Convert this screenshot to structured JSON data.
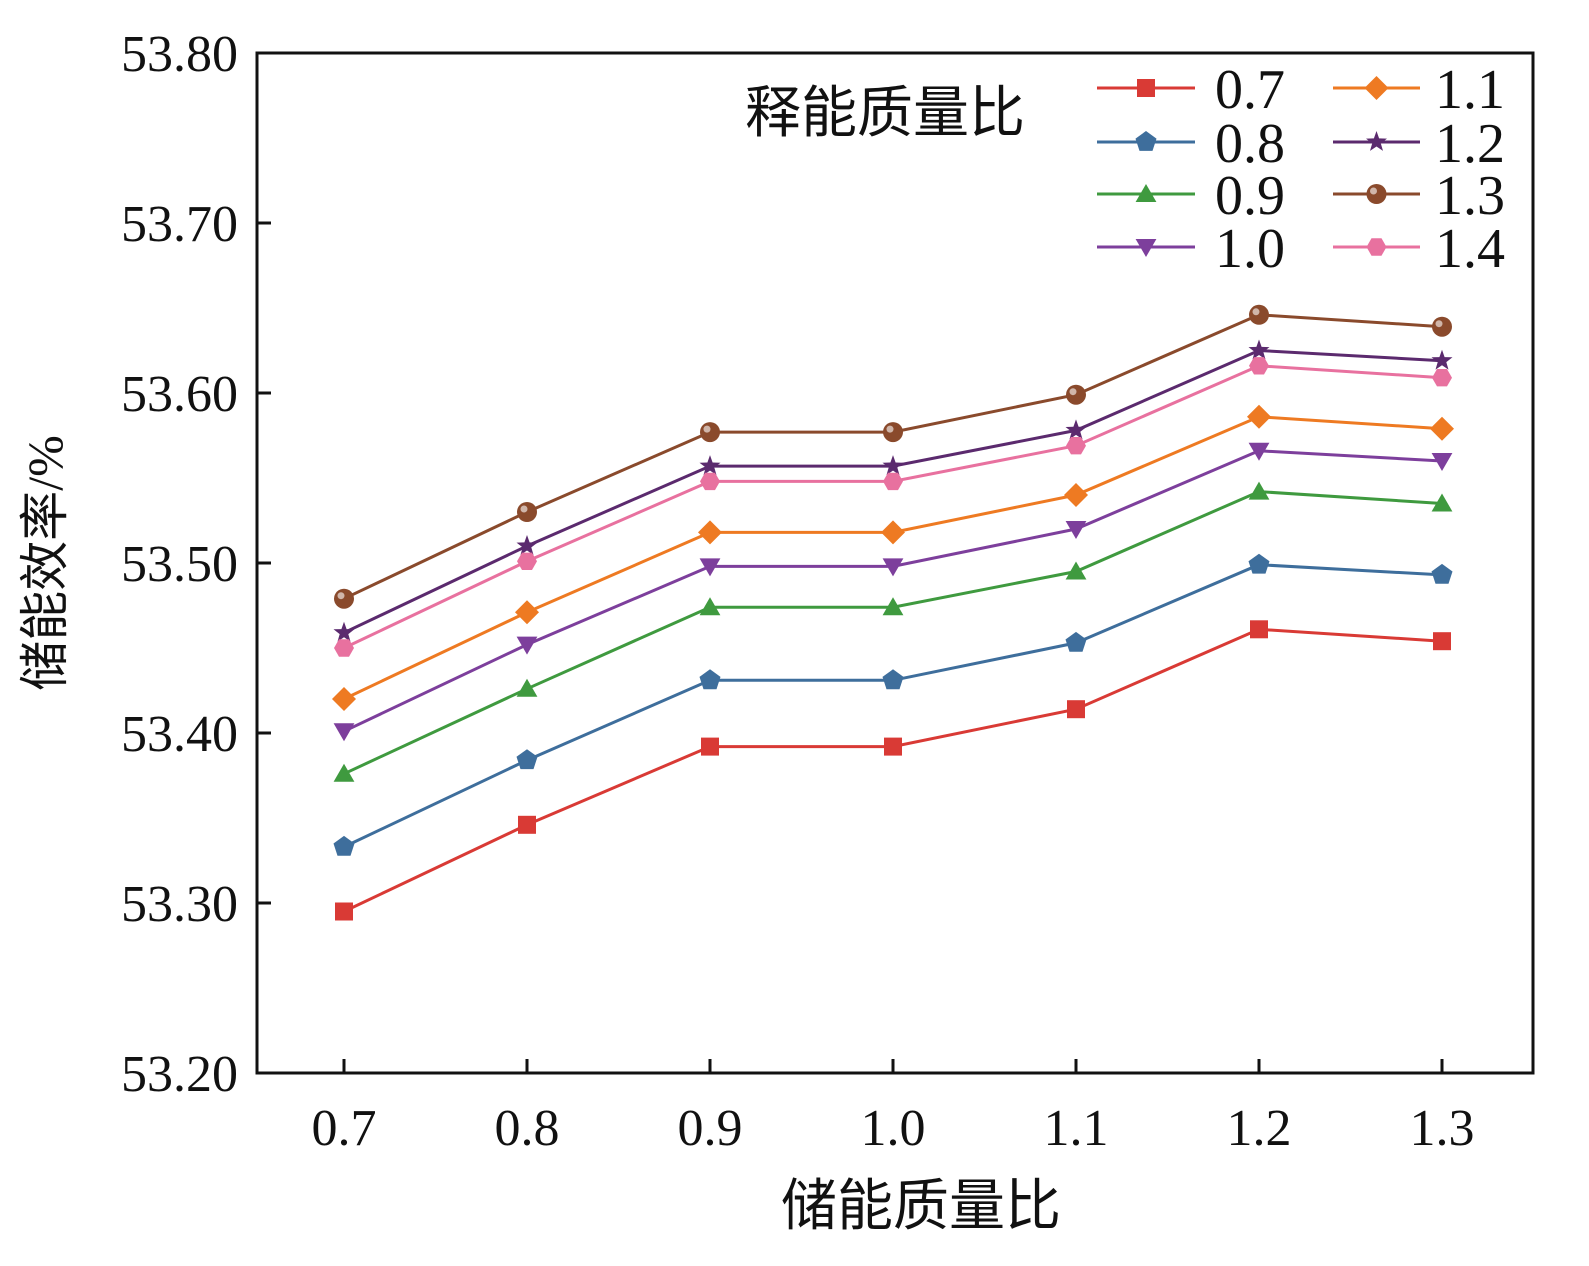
{
  "chart_data": {
    "type": "line",
    "title": "",
    "xlabel": "储能质量比",
    "ylabel": "储能效率/%",
    "x": [
      0.7,
      0.8,
      0.9,
      1.0,
      1.1,
      1.2,
      1.3
    ],
    "xtick_labels": [
      "0.7",
      "0.8",
      "0.9",
      "1.0",
      "1.1",
      "1.2",
      "1.3"
    ],
    "xlim": [
      0.65,
      1.35
    ],
    "ylim": [
      53.2,
      53.8
    ],
    "ytick_values": [
      53.2,
      53.3,
      53.4,
      53.5,
      53.6,
      53.7,
      53.8
    ],
    "ytick_labels": [
      "53.20",
      "53.30",
      "53.40",
      "53.50",
      "53.60",
      "53.70",
      "53.80"
    ],
    "grid": false,
    "legend": {
      "title": "释能质量比",
      "placement": "top-right",
      "columns": 2
    },
    "series": [
      {
        "name": "0.7",
        "color": "#d93a35",
        "marker": "square",
        "values": [
          53.295,
          53.346,
          53.392,
          53.392,
          53.414,
          53.461,
          53.454
        ]
      },
      {
        "name": "0.8",
        "color": "#3e6e9c",
        "marker": "pentagon",
        "values": [
          53.333,
          53.384,
          53.431,
          53.431,
          53.453,
          53.499,
          53.493
        ]
      },
      {
        "name": "0.9",
        "color": "#3f9a3f",
        "marker": "triangle-up",
        "values": [
          53.376,
          53.426,
          53.474,
          53.474,
          53.495,
          53.542,
          53.535
        ]
      },
      {
        "name": "1.0",
        "color": "#7d3f9c",
        "marker": "triangle-down",
        "values": [
          53.401,
          53.452,
          53.498,
          53.498,
          53.52,
          53.566,
          53.56
        ]
      },
      {
        "name": "1.1",
        "color": "#ee7a22",
        "marker": "diamond",
        "values": [
          53.42,
          53.471,
          53.518,
          53.518,
          53.54,
          53.586,
          53.579
        ]
      },
      {
        "name": "1.2",
        "color": "#5b2a6e",
        "marker": "star",
        "values": [
          53.459,
          53.51,
          53.557,
          53.557,
          53.578,
          53.625,
          53.619
        ]
      },
      {
        "name": "1.3",
        "color": "#8a4a2c",
        "marker": "circle",
        "values": [
          53.479,
          53.53,
          53.577,
          53.577,
          53.599,
          53.646,
          53.639
        ]
      },
      {
        "name": "1.4",
        "color": "#e8719f",
        "marker": "hexagon",
        "values": [
          53.45,
          53.501,
          53.548,
          53.548,
          53.569,
          53.616,
          53.609
        ]
      }
    ]
  }
}
